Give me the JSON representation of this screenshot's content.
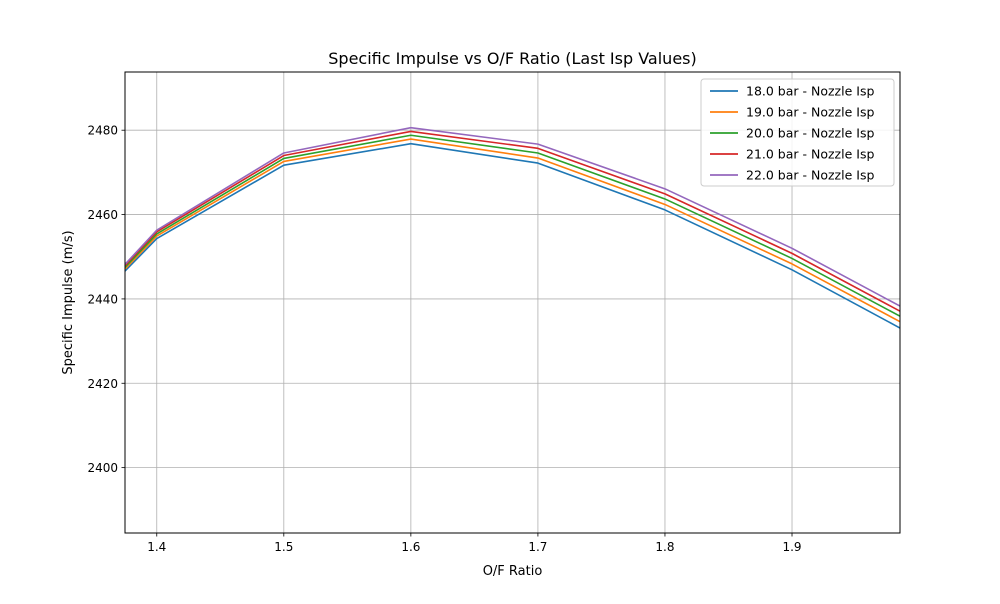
{
  "chart_data": {
    "type": "line",
    "title": "Specific Impulse vs O/F Ratio (Last Isp Values)",
    "xlabel": "O/F Ratio",
    "ylabel": "Specific Impulse (m/s)",
    "xlim": [
      1.375,
      1.985
    ],
    "ylim": [
      2384.5,
      2493.8
    ],
    "xticks": [
      1.4,
      1.5,
      1.6,
      1.7,
      1.8,
      1.9
    ],
    "xtick_labels": [
      "1.4",
      "1.5",
      "1.6",
      "1.7",
      "1.8",
      "1.9"
    ],
    "yticks": [
      2400,
      2420,
      2440,
      2460,
      2480
    ],
    "ytick_labels": [
      "2400",
      "2420",
      "2440",
      "2460",
      "2480"
    ],
    "grid": true,
    "legend_position": "upper right",
    "x": [
      1.375,
      1.4,
      1.5,
      1.6,
      1.7,
      1.8,
      1.9,
      1.985
    ],
    "series": [
      {
        "name": "18.0 bar - Nozzle Isp",
        "color": "#1f77b4",
        "values": [
          2446.6,
          2454.3,
          2471.7,
          2476.8,
          2472.2,
          2461.1,
          2446.9,
          2433.1
        ]
      },
      {
        "name": "19.0 bar - Nozzle Isp",
        "color": "#ff7f0e",
        "values": [
          2447.1,
          2454.9,
          2472.6,
          2477.9,
          2473.4,
          2462.4,
          2448.3,
          2434.6
        ]
      },
      {
        "name": "20.0 bar - Nozzle Isp",
        "color": "#2ca02c",
        "values": [
          2447.5,
          2455.4,
          2473.3,
          2478.8,
          2474.6,
          2463.7,
          2449.6,
          2435.9
        ]
      },
      {
        "name": "21.0 bar - Nozzle Isp",
        "color": "#d62728",
        "values": [
          2447.9,
          2455.9,
          2474.0,
          2479.7,
          2475.7,
          2464.9,
          2450.8,
          2437.1
        ]
      },
      {
        "name": "22.0 bar - Nozzle Isp",
        "color": "#9467bd",
        "values": [
          2448.2,
          2456.3,
          2474.6,
          2480.6,
          2476.7,
          2466.1,
          2452.0,
          2438.3
        ]
      }
    ]
  }
}
